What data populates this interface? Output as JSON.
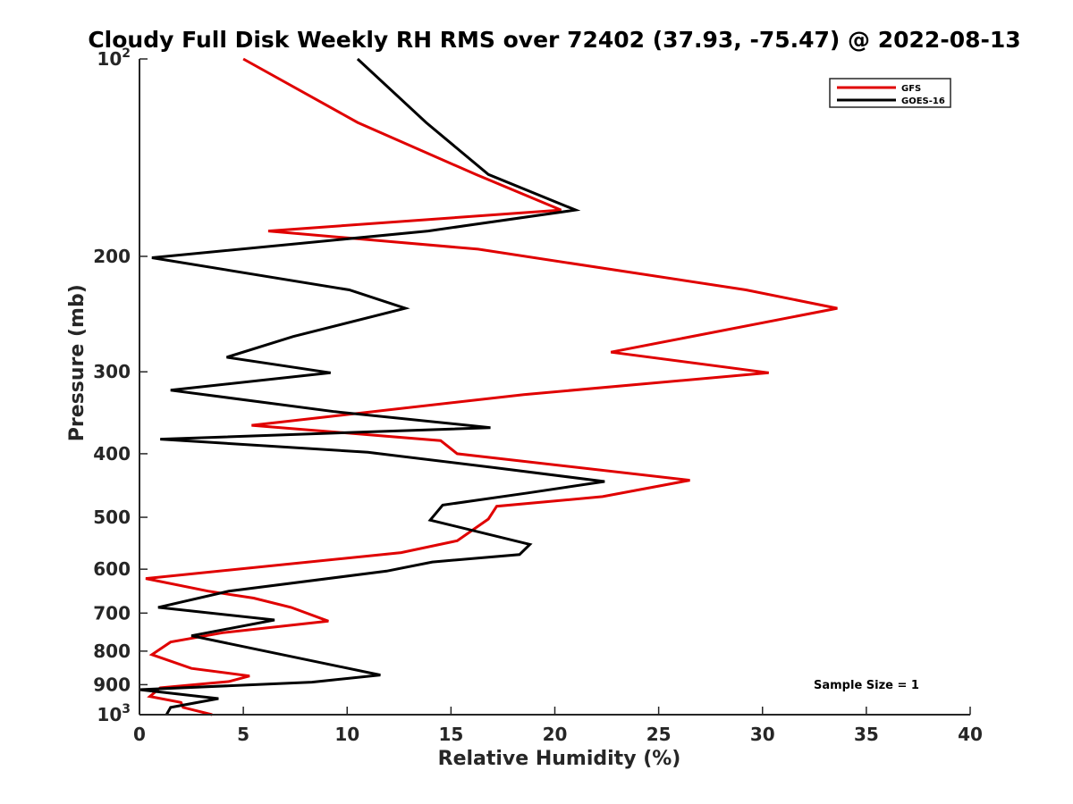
{
  "chart_data": {
    "type": "line",
    "title": "Cloudy Full Disk Weekly RH RMS over 72402 (37.93, -75.47) @ 2022-08-13",
    "xlabel": "Relative Humidity (%)",
    "ylabel": "Pressure (mb)",
    "xlim": [
      0,
      40
    ],
    "ylim": [
      100,
      1000
    ],
    "y_scale": "log",
    "y_reversed": true,
    "grid": false,
    "x_ticks": [
      "0",
      "5",
      "10",
      "15",
      "20",
      "25",
      "30",
      "35",
      "40"
    ],
    "x_tick_values": [
      0,
      5,
      10,
      15,
      20,
      25,
      30,
      35,
      40
    ],
    "y_ticks": [
      {
        "value": 100,
        "base": "10",
        "exp": "2"
      },
      {
        "value": 200,
        "label": "200"
      },
      {
        "value": 300,
        "label": "300"
      },
      {
        "value": 400,
        "label": "400"
      },
      {
        "value": 500,
        "label": "500"
      },
      {
        "value": 600,
        "label": "600"
      },
      {
        "value": 700,
        "label": "700"
      },
      {
        "value": 800,
        "label": "800"
      },
      {
        "value": 900,
        "label": "900"
      },
      {
        "value": 1000,
        "base": "10",
        "exp": "3"
      }
    ],
    "legend_position": "top-right",
    "annotation": "Sample Size = 1",
    "series": [
      {
        "name": "GFS",
        "color": "#e00000",
        "points": [
          [
            5.0,
            100
          ],
          [
            10.5,
            125
          ],
          [
            16.2,
            150
          ],
          [
            20.3,
            170
          ],
          [
            6.2,
            183
          ],
          [
            16.3,
            195
          ],
          [
            29.2,
            225
          ],
          [
            33.6,
            240
          ],
          [
            22.7,
            280
          ],
          [
            30.3,
            301
          ],
          [
            18.5,
            325
          ],
          [
            5.4,
            362
          ],
          [
            14.5,
            382
          ],
          [
            15.3,
            400
          ],
          [
            26.5,
            439
          ],
          [
            22.3,
            465
          ],
          [
            17.2,
            481
          ],
          [
            16.8,
            503
          ],
          [
            15.3,
            543
          ],
          [
            12.6,
            566
          ],
          [
            0.3,
            620
          ],
          [
            3.3,
            648
          ],
          [
            5.5,
            664
          ],
          [
            7.3,
            686
          ],
          [
            9.1,
            720
          ],
          [
            4.0,
            750
          ],
          [
            1.5,
            775
          ],
          [
            0.6,
            810
          ],
          [
            2.5,
            850
          ],
          [
            5.3,
            873
          ],
          [
            4.3,
            890
          ],
          [
            1.0,
            910
          ],
          [
            0.5,
            938
          ],
          [
            2.0,
            958
          ],
          [
            2.1,
            975
          ],
          [
            3.5,
            1000
          ]
        ]
      },
      {
        "name": "GOES-16",
        "color": "#000000",
        "points": [
          [
            10.5,
            100
          ],
          [
            13.8,
            125
          ],
          [
            16.8,
            150
          ],
          [
            21.0,
            170
          ],
          [
            13.9,
            183
          ],
          [
            0.6,
            201
          ],
          [
            10.1,
            225
          ],
          [
            12.8,
            240
          ],
          [
            7.4,
            265
          ],
          [
            4.2,
            285
          ],
          [
            9.2,
            301
          ],
          [
            1.5,
            320
          ],
          [
            9.4,
            345
          ],
          [
            16.9,
            365
          ],
          [
            1.0,
            380
          ],
          [
            11.0,
            398
          ],
          [
            17.1,
            420
          ],
          [
            22.4,
            441
          ],
          [
            18.7,
            459
          ],
          [
            14.6,
            479
          ],
          [
            14.0,
            505
          ],
          [
            18.8,
            550
          ],
          [
            18.3,
            570
          ],
          [
            14.1,
            585
          ],
          [
            11.9,
            604
          ],
          [
            4.3,
            648
          ],
          [
            0.9,
            686
          ],
          [
            6.5,
            717
          ],
          [
            2.5,
            758
          ],
          [
            8.4,
            829
          ],
          [
            11.6,
            870
          ],
          [
            8.3,
            892
          ],
          [
            0.0,
            916
          ],
          [
            3.8,
            945
          ],
          [
            1.5,
            975
          ],
          [
            1.3,
            1000
          ]
        ]
      }
    ]
  }
}
